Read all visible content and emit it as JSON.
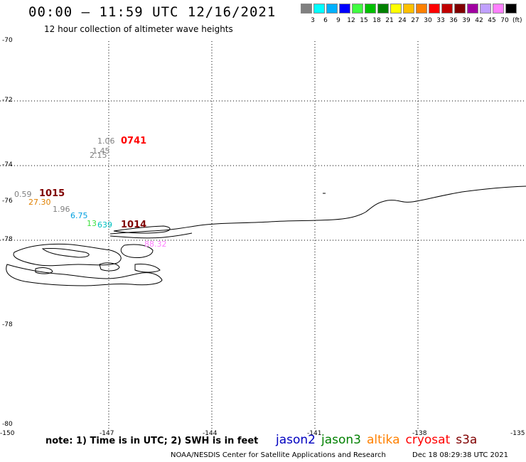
{
  "header": {
    "title": "00:00 – 11:59 UTC 12/16/2021",
    "subtitle": "12 hour collection of altimeter wave heights"
  },
  "scale": {
    "colors": [
      "#808080",
      "#00ffff",
      "#00b0ff",
      "#0000ff",
      "#40ff40",
      "#00c000",
      "#008000",
      "#ffff00",
      "#ffc000",
      "#ff8000",
      "#ff0000",
      "#c00000",
      "#800000",
      "#a000a0",
      "#c0a0ff",
      "#ff80ff",
      "#000000"
    ],
    "labels": [
      "3",
      "6",
      "9",
      "12",
      "15",
      "18",
      "21",
      "24",
      "27",
      "30",
      "33",
      "36",
      "39",
      "42",
      "45",
      "70"
    ],
    "unit": "(ft)"
  },
  "axes": {
    "lat_labels": [
      "-70",
      "-72",
      "-74",
      "-76",
      "-78",
      "-78",
      "-80"
    ],
    "lon_labels": [
      "-150",
      "-147",
      "-144",
      "-141",
      "-138",
      "-135"
    ]
  },
  "observations": [
    {
      "text": "1.06",
      "color": "#808080",
      "big": false
    },
    {
      "text": "0741",
      "color": "#ff0000",
      "big": true
    },
    {
      "text": "1.45",
      "color": "#808080",
      "big": false
    },
    {
      "text": "2.15",
      "color": "#808080",
      "big": false
    },
    {
      "text": "0.59",
      "color": "#808080",
      "big": false
    },
    {
      "text": "1015",
      "color": "#800000",
      "big": true
    },
    {
      "text": "27.30",
      "color": "#e08000",
      "big": false
    },
    {
      "text": "1.96",
      "color": "#808080",
      "big": false
    },
    {
      "text": "6.75",
      "color": "#00a0e0",
      "big": false
    },
    {
      "text": "13",
      "color": "#40e040",
      "big": false
    },
    {
      "text": "639",
      "color": "#00c0c0",
      "big": false
    },
    {
      "text": "1014",
      "color": "#800000",
      "big": true
    },
    {
      "text": "88.32",
      "color": "#ff80ff",
      "big": false
    }
  ],
  "footer": {
    "note": "note:  1) Time is in UTC;  2) SWH is in feet",
    "legend": [
      {
        "label": "jason2",
        "color": "#0000c0"
      },
      {
        "label": "jason3",
        "color": "#008000"
      },
      {
        "label": "altika",
        "color": "#ff8000"
      },
      {
        "label": "cryosat",
        "color": "#ff0000"
      },
      {
        "label": "s3a",
        "color": "#800000"
      }
    ],
    "credit": "NOAA/NESDIS Center for Satellite Applications and Research",
    "timestamp": "Dec 18 08:29:38 UTC 2021"
  }
}
